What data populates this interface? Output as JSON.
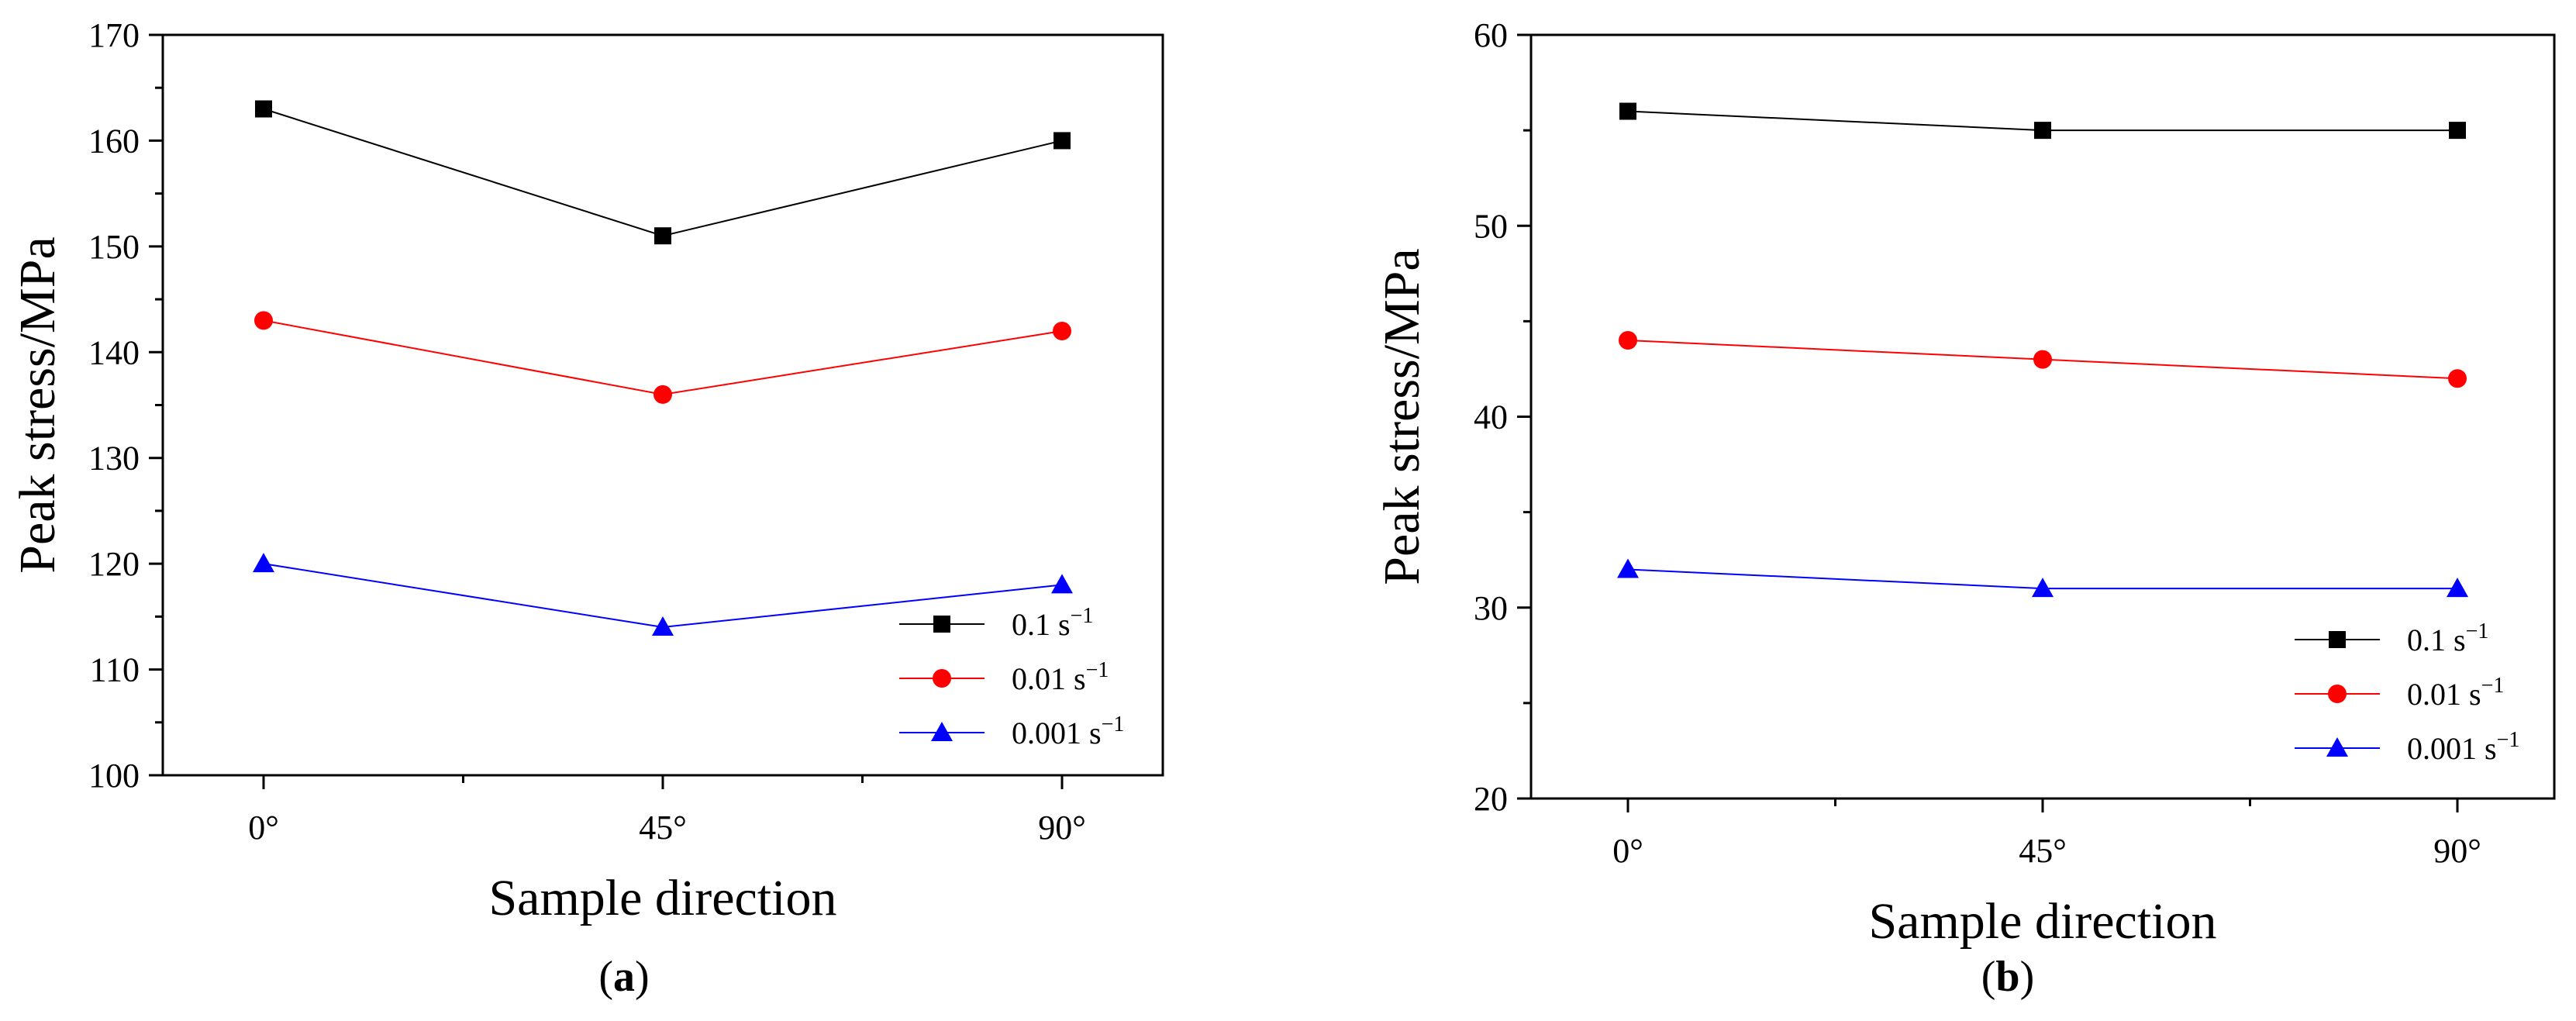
{
  "chart_data": [
    {
      "type": "line",
      "panel_label": "a",
      "title": "",
      "xlabel": "Sample direction",
      "ylabel": "Peak stress/MPa",
      "categories": [
        "0°",
        "45°",
        "90°"
      ],
      "ylim": [
        100,
        170
      ],
      "yticks": [
        100,
        110,
        120,
        130,
        140,
        150,
        160,
        170
      ],
      "legend_position": "bottom-right",
      "series": [
        {
          "name": "0.1 s",
          "exponent": "−1",
          "color": "#000000",
          "marker": "square",
          "values": [
            163,
            151,
            160
          ]
        },
        {
          "name": "0.01 s",
          "exponent": "−1",
          "color": "#ff0000",
          "marker": "circle",
          "values": [
            143,
            136,
            142
          ]
        },
        {
          "name": "0.001 s",
          "exponent": "−1",
          "color": "#0000ff",
          "marker": "triangle",
          "values": [
            120,
            114,
            118
          ]
        }
      ]
    },
    {
      "type": "line",
      "panel_label": "b",
      "title": "",
      "xlabel": "Sample direction",
      "ylabel": "Peak stress/MPa",
      "categories": [
        "0°",
        "45°",
        "90°"
      ],
      "ylim": [
        20,
        60
      ],
      "yticks": [
        20,
        30,
        40,
        50,
        60
      ],
      "legend_position": "bottom-right",
      "series": [
        {
          "name": "0.1 s",
          "exponent": "−1",
          "color": "#000000",
          "marker": "square",
          "values": [
            56,
            55,
            55
          ]
        },
        {
          "name": "0.01 s",
          "exponent": "−1",
          "color": "#ff0000",
          "marker": "circle",
          "values": [
            44,
            43,
            42
          ]
        },
        {
          "name": "0.001 s",
          "exponent": "−1",
          "color": "#0000ff",
          "marker": "triangle",
          "values": [
            32,
            31,
            31
          ]
        }
      ]
    }
  ]
}
